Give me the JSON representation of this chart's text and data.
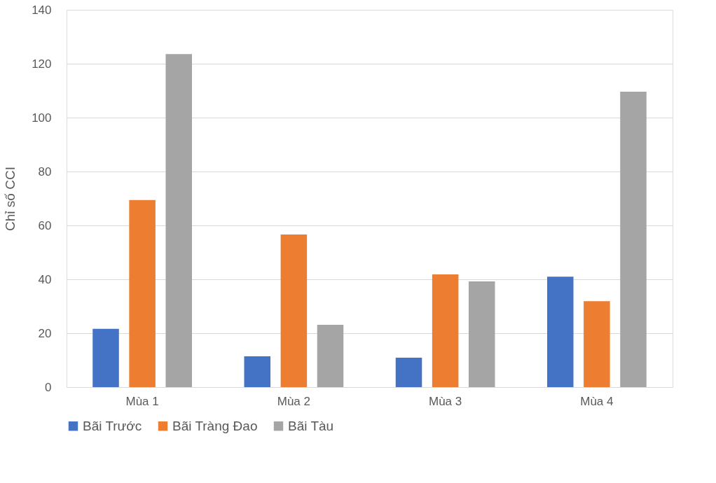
{
  "chart_data": {
    "type": "bar",
    "ylabel": "Chỉ số CCI",
    "categories": [
      "Mùa 1",
      "Mùa 2",
      "Mùa 3",
      "Mùa 4"
    ],
    "series": [
      {
        "name": "Bãi Trước",
        "color": "#4472c4",
        "values": [
          21.6,
          11.4,
          10.9,
          41.0
        ]
      },
      {
        "name": "Bãi Tràng Đao",
        "color": "#ed7d31",
        "values": [
          69.4,
          56.6,
          41.8,
          31.9
        ]
      },
      {
        "name": "Bãi Tàu",
        "color": "#a5a5a5",
        "values": [
          123.6,
          23.1,
          39.2,
          109.6
        ]
      }
    ],
    "ylim": [
      0,
      140
    ],
    "yticks": [
      0,
      20,
      40,
      60,
      80,
      100,
      120,
      140
    ],
    "grid": "y",
    "legend": "bottom"
  }
}
